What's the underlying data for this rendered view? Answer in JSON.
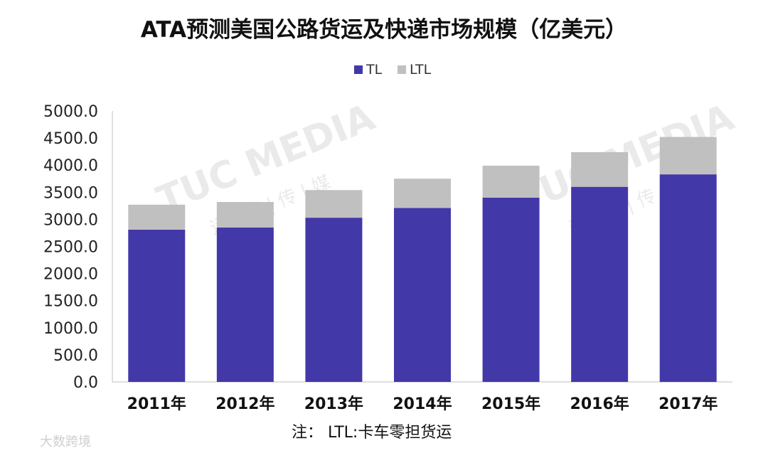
{
  "chart_data": {
    "type": "bar",
    "stacked": true,
    "title": "ATA预测美国公路货运及快递市场规模（亿美元）",
    "categories": [
      "2011年",
      "2012年",
      "2013年",
      "2014年",
      "2015年",
      "2016年",
      "2017年"
    ],
    "series": [
      {
        "name": "TL",
        "color": "#4338a8",
        "values": [
          2810,
          2850,
          3030,
          3210,
          3400,
          3600,
          3830
        ]
      },
      {
        "name": "LTL",
        "color": "#c0c0c0",
        "values": [
          460,
          470,
          510,
          540,
          590,
          640,
          690
        ]
      }
    ],
    "ylim": [
      0,
      5000
    ],
    "yticks": [
      "0.0",
      "500.0",
      "1000.0",
      "1500.0",
      "2000.0",
      "2500.0",
      "3000.0",
      "3500.0",
      "4000.0",
      "4500.0",
      "5000.0"
    ],
    "legend_position": "top-center",
    "grid": false,
    "note": "注：  LTL:卡车零担货运"
  },
  "watermarks": {
    "brand": "TUC MEDIA",
    "brand_sub": "运 | 联 | 传 | 媒",
    "corner": "大数跨境"
  }
}
